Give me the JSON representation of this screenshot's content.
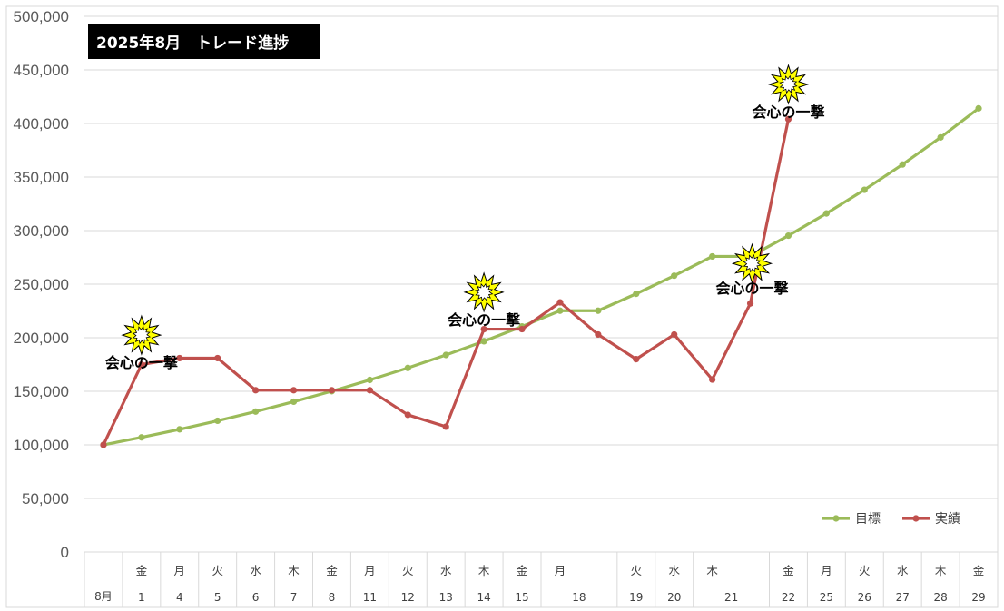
{
  "colors": {
    "target": "#9BBB59",
    "actual": "#C0504D",
    "grid": "#D9D9D9",
    "burst_fill": "#FFFF00",
    "title_bg": "#000000"
  },
  "chart_data": {
    "type": "line",
    "title": "2025年8月　トレード進捗",
    "month_label": "8月",
    "ylim": [
      0,
      500000
    ],
    "yticks": [
      "0",
      "50,000",
      "100,000",
      "150,000",
      "200,000",
      "250,000",
      "300,000",
      "350,000",
      "400,000",
      "450,000",
      "500,000"
    ],
    "grid": true,
    "legend_position": "bottom-right",
    "categories": [
      {
        "weekday": "",
        "day": ""
      },
      {
        "weekday": "金",
        "day": "1"
      },
      {
        "weekday": "月",
        "day": "4"
      },
      {
        "weekday": "火",
        "day": "5"
      },
      {
        "weekday": "水",
        "day": "6"
      },
      {
        "weekday": "木",
        "day": "7"
      },
      {
        "weekday": "金",
        "day": "8"
      },
      {
        "weekday": "月",
        "day": "11"
      },
      {
        "weekday": "火",
        "day": "12"
      },
      {
        "weekday": "水",
        "day": "13"
      },
      {
        "weekday": "木",
        "day": "14"
      },
      {
        "weekday": "金",
        "day": "15"
      },
      {
        "weekday": "月",
        "day": "18"
      },
      {
        "weekday": "",
        "day": ""
      },
      {
        "weekday": "火",
        "day": "19"
      },
      {
        "weekday": "水",
        "day": "20"
      },
      {
        "weekday": "木",
        "day": "21"
      },
      {
        "weekday": "",
        "day": ""
      },
      {
        "weekday": "金",
        "day": "22"
      },
      {
        "weekday": "月",
        "day": "25"
      },
      {
        "weekday": "火",
        "day": "26"
      },
      {
        "weekday": "水",
        "day": "27"
      },
      {
        "weekday": "木",
        "day": "28"
      },
      {
        "weekday": "金",
        "day": "29"
      }
    ],
    "series": [
      {
        "name": "目標",
        "values": [
          100000,
          107000,
          114500,
          122500,
          131100,
          140300,
          150100,
          160600,
          171800,
          183900,
          196700,
          210500,
          225200,
          225200,
          241000,
          257900,
          275900,
          275900,
          295300,
          316000,
          338100,
          361700,
          387000,
          414100
        ]
      },
      {
        "name": "実績",
        "values": [
          100000,
          175000,
          181000,
          181000,
          151000,
          151000,
          151000,
          151000,
          128000,
          117000,
          208000,
          208000,
          233000,
          203000,
          180000,
          203000,
          161000,
          232000,
          404000,
          null,
          null,
          null,
          null,
          null
        ]
      }
    ],
    "annotations": [
      {
        "text": "会心の一撃",
        "index": 1,
        "value": 194000
      },
      {
        "text": "会心の一撃",
        "index": 10,
        "value": 234000
      },
      {
        "text": "会心の一撃",
        "index": 17,
        "value": 260000
      },
      {
        "text": "会心の一撃",
        "index": 18,
        "value": 428000
      }
    ]
  }
}
